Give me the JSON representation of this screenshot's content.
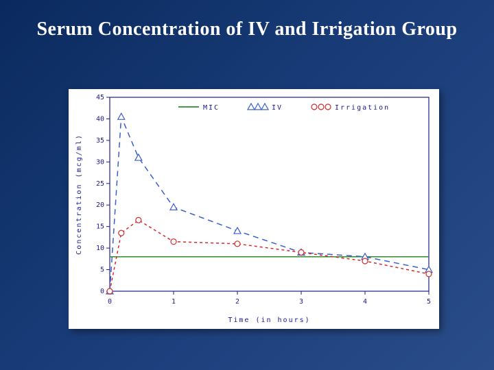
{
  "title": "Serum Concentration of IV and Irrigation Group",
  "chart": {
    "type": "line",
    "background_color": "#ffffff",
    "plot_border_color": "#1a1a8a",
    "axis_color": "#1a1a8a",
    "xlabel": "Time (in hours)",
    "ylabel": "Concentration (mcg/ml)",
    "label_fontsize": 10,
    "xlim": [
      0,
      5
    ],
    "ylim": [
      0,
      45
    ],
    "xtick_step": 1,
    "ytick_step": 5,
    "xticks": [
      "0",
      "1",
      "2",
      "3",
      "4",
      "5"
    ],
    "yticks": [
      "0",
      "5",
      "10",
      "15",
      "20",
      "25",
      "30",
      "35",
      "40",
      "45"
    ],
    "legend": {
      "items": [
        {
          "key": "mic",
          "label": "MIC",
          "type": "line",
          "color": "#2e8b2e"
        },
        {
          "key": "iv",
          "label": "IV",
          "type": "triangle",
          "color": "#3a5fcd"
        },
        {
          "key": "irrigation",
          "label": "Irrigation",
          "type": "circle",
          "color": "#d62828"
        }
      ]
    },
    "series": {
      "mic": {
        "color": "#2e8b2e",
        "line_width": 1.5,
        "dash": "none",
        "marker": "none",
        "points": [
          {
            "x": 0,
            "y": 8
          },
          {
            "x": 5,
            "y": 8
          }
        ]
      },
      "iv": {
        "color": "#3a5fcd",
        "line_width": 1.5,
        "dash": "8,6",
        "marker": "triangle",
        "marker_size": 5,
        "points": [
          {
            "x": 0,
            "y": 0
          },
          {
            "x": 0.18,
            "y": 40.5
          },
          {
            "x": 0.45,
            "y": 31
          },
          {
            "x": 1,
            "y": 19.5
          },
          {
            "x": 2,
            "y": 14
          },
          {
            "x": 3,
            "y": 9
          },
          {
            "x": 4,
            "y": 8
          },
          {
            "x": 5,
            "y": 5
          }
        ]
      },
      "irrigation": {
        "color": "#d62828",
        "line_width": 1.5,
        "dash": "4,4",
        "marker": "circle",
        "marker_size": 4,
        "points": [
          {
            "x": 0,
            "y": 0
          },
          {
            "x": 0.18,
            "y": 13.5
          },
          {
            "x": 0.45,
            "y": 16.5
          },
          {
            "x": 1,
            "y": 11.5
          },
          {
            "x": 2,
            "y": 11
          },
          {
            "x": 3,
            "y": 9
          },
          {
            "x": 4,
            "y": 7
          },
          {
            "x": 5,
            "y": 4
          }
        ]
      }
    }
  }
}
